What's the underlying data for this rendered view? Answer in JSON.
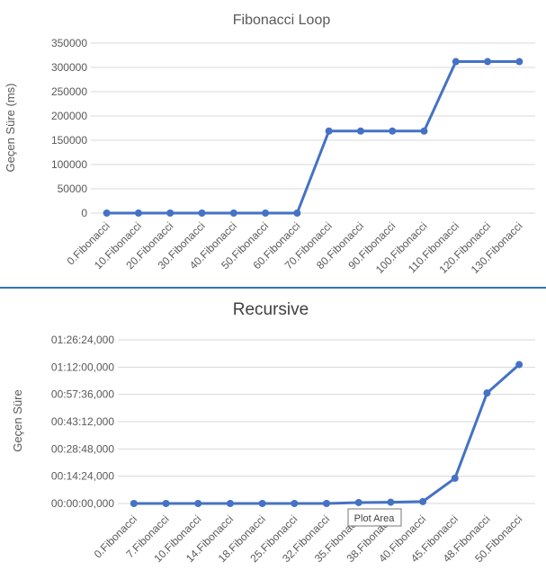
{
  "chart_data": [
    {
      "type": "line",
      "title": "Fibonacci Loop",
      "xlabel": "",
      "ylabel": "Geçen Süre (ms)",
      "ylim": [
        0,
        350000
      ],
      "yticks": [
        "0",
        "50000",
        "100000",
        "150000",
        "200000",
        "250000",
        "300000",
        "350000"
      ],
      "grid": true,
      "legend": "none",
      "color": "#4472C4",
      "categories": [
        "0.Fibonacci",
        "10.Fibonacci",
        "20.Fibonacci",
        "30.Fibonacci",
        "40.Fibonacci",
        "50.Fibonacci",
        "60.Fibonacci",
        "70.Fibonacci",
        "80.Fibonacci",
        "90.Fibonacci",
        "100.Fibonacci",
        "110.Fibonacci",
        "120.Fibonacci",
        "130.Fibonacci"
      ],
      "values": [
        0,
        0,
        0,
        0,
        0,
        0,
        0,
        169000,
        169000,
        169000,
        169000,
        312000,
        312000,
        312000
      ]
    },
    {
      "type": "line",
      "title": "Recursive",
      "xlabel": "",
      "ylabel": "Geçen Süre",
      "ylim_seconds": [
        0,
        5184
      ],
      "yticks": [
        "00:00:00,000",
        "00:14:24,000",
        "00:28:48,000",
        "00:43:12,000",
        "00:57:36,000",
        "01:12:00,000",
        "01:26:24,000"
      ],
      "grid": true,
      "legend": "none",
      "color": "#4472C4",
      "categories": [
        "0.Fibonacci",
        "7.Fibonacci",
        "10.Fibonacci",
        "14.Fibonacci",
        "18.Fibonacci",
        "25.Fibonacci",
        "32.Fibonacci",
        "35.Fibonacci",
        "38.Fibonacci",
        "40.Fibonacci",
        "45.Fibonacci",
        "48.Fibonacci",
        "50.Fibonacci"
      ],
      "values_seconds": [
        0,
        0,
        0,
        0,
        0,
        0,
        0,
        30,
        40,
        60,
        800,
        3500,
        4400
      ]
    }
  ],
  "tooltip": {
    "text": "Plot Area"
  },
  "separator_color": "#2E75B6"
}
